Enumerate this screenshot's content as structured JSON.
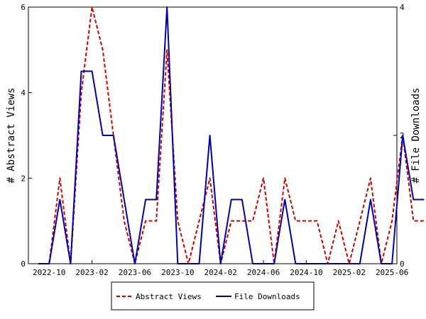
{
  "chart_data": {
    "type": "line",
    "x": [
      "2022-09",
      "2022-10",
      "2022-11",
      "2022-12",
      "2023-01",
      "2023-02",
      "2023-03",
      "2023-04",
      "2023-05",
      "2023-06",
      "2023-07",
      "2023-08",
      "2023-09",
      "2023-10",
      "2023-11",
      "2023-12",
      "2024-01",
      "2024-02",
      "2024-03",
      "2024-04",
      "2024-05",
      "2024-06",
      "2024-07",
      "2024-08",
      "2024-09",
      "2024-10",
      "2024-11",
      "2024-12",
      "2025-01",
      "2025-02",
      "2025-03",
      "2025-04",
      "2025-05",
      "2025-06",
      "2025-07",
      "2025-08",
      "2025-09"
    ],
    "x_tick_labels": [
      "2022-10",
      "2023-02",
      "2023-06",
      "2023-10",
      "2024-02",
      "2024-06",
      "2024-10",
      "2025-02",
      "2025-06"
    ],
    "series": [
      {
        "name": "Abstract Views",
        "axis": "left",
        "color": "#cc0000",
        "style": "dashed",
        "values": [
          0,
          0,
          2,
          0,
          4,
          6,
          5,
          3,
          1,
          0,
          1,
          1,
          5,
          1,
          0,
          1,
          2,
          0,
          1,
          1,
          1,
          2,
          0,
          2,
          1,
          1,
          1,
          0,
          1,
          0,
          1,
          2,
          0,
          1,
          3,
          1,
          1
        ]
      },
      {
        "name": "File Downloads",
        "axis": "right",
        "color": "#0000aa",
        "style": "solid",
        "values": [
          0,
          0,
          1,
          0,
          3,
          3,
          2,
          2,
          1,
          0,
          1,
          1,
          4,
          0,
          0,
          0,
          2,
          0,
          1,
          1,
          0,
          0,
          0,
          1,
          0,
          0,
          0,
          0,
          0,
          0,
          0,
          1,
          0,
          0,
          2,
          1,
          1
        ]
      }
    ],
    "ylabel": "# Abstract Views",
    "y2label": "# File Downloads",
    "ylim": [
      0,
      6
    ],
    "y2lim": [
      0,
      4
    ],
    "yticks": [
      "0",
      "2",
      "4",
      "6"
    ],
    "y2ticks": [
      "0",
      "2",
      "4"
    ],
    "grid": false,
    "legend": {
      "placement": "bottom"
    }
  }
}
